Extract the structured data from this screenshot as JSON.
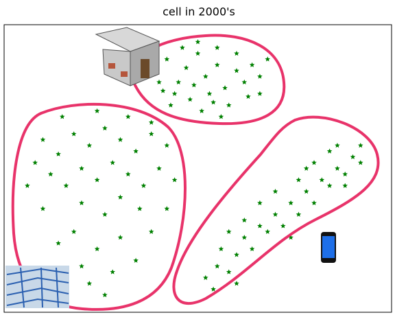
{
  "chart_data": {
    "type": "scatter",
    "title": "cell in 2000's",
    "x": [
      38,
      42,
      45,
      47,
      50,
      52,
      55,
      57,
      60,
      62,
      44,
      48,
      53,
      58,
      63,
      66,
      68,
      50,
      46,
      40,
      43,
      51,
      56,
      60,
      64,
      55,
      49,
      54,
      41,
      66,
      10,
      14,
      18,
      22,
      26,
      30,
      34,
      38,
      20,
      24,
      28,
      32,
      16,
      12,
      8,
      36,
      40,
      42,
      15,
      24,
      32,
      20,
      26,
      30,
      35,
      18,
      24,
      30,
      28,
      22,
      34,
      38,
      42,
      10,
      14,
      20,
      26,
      44,
      6,
      38,
      52,
      55,
      58,
      56,
      60,
      62,
      64,
      66,
      68,
      70,
      72,
      66,
      74,
      76,
      78,
      80,
      82,
      84,
      86,
      88,
      90,
      92,
      76,
      80,
      84,
      70,
      62,
      58,
      88,
      92,
      74,
      54,
      60,
      86,
      78
    ],
    "y": [
      84,
      88,
      80,
      85,
      90,
      82,
      86,
      78,
      84,
      80,
      76,
      74,
      76,
      72,
      75,
      82,
      88,
      94,
      92,
      80,
      72,
      70,
      68,
      90,
      86,
      92,
      79,
      73,
      77,
      76,
      60,
      55,
      62,
      58,
      64,
      60,
      56,
      62,
      50,
      46,
      52,
      48,
      44,
      48,
      52,
      44,
      50,
      58,
      68,
      70,
      68,
      38,
      34,
      40,
      36,
      28,
      22,
      26,
      14,
      10,
      18,
      28,
      36,
      36,
      24,
      16,
      6,
      46,
      44,
      66,
      12,
      16,
      14,
      22,
      20,
      26,
      22,
      30,
      28,
      34,
      30,
      38,
      38,
      34,
      42,
      38,
      46,
      44,
      50,
      48,
      54,
      52,
      46,
      52,
      56,
      42,
      32,
      28,
      44,
      58,
      26,
      8,
      10,
      58,
      50
    ],
    "color": "#008000",
    "xlim": [
      0,
      100
    ],
    "ylim": [
      0,
      100
    ]
  }
}
